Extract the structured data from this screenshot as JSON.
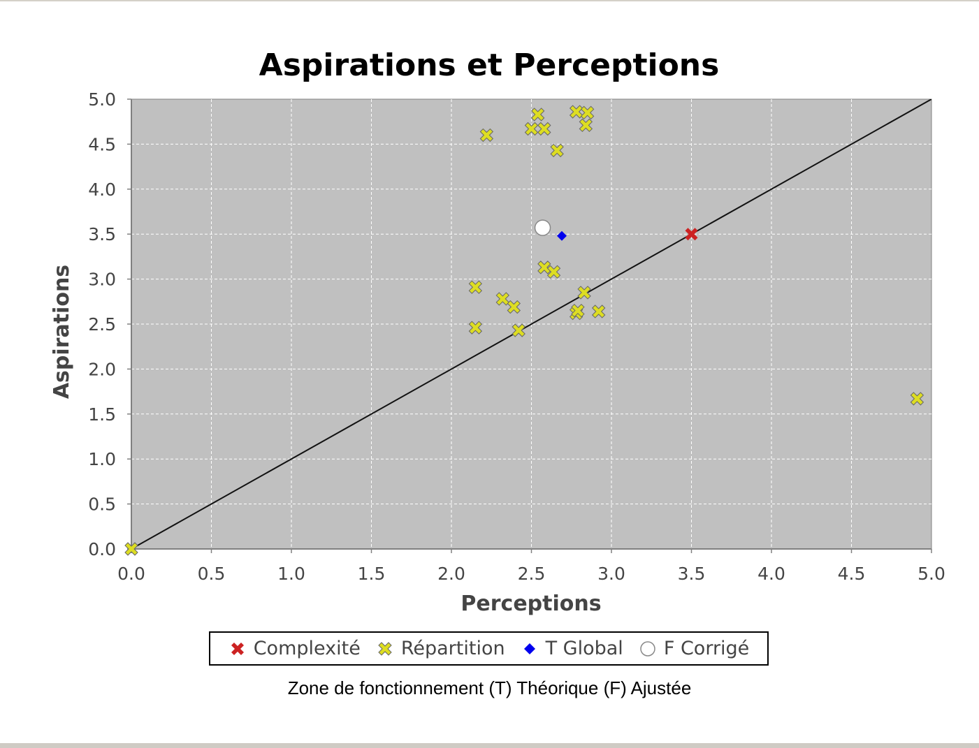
{
  "chart_data": {
    "type": "scatter",
    "title": "Aspirations et Perceptions",
    "xlabel": "Perceptions",
    "ylabel": "Aspirations",
    "xlim": [
      0,
      5
    ],
    "ylim": [
      0,
      5
    ],
    "x_ticks": [
      "0.0",
      "0.5",
      "1.0",
      "1.5",
      "2.0",
      "2.5",
      "3.0",
      "3.5",
      "4.0",
      "4.5",
      "5.0"
    ],
    "y_ticks": [
      "0.0",
      "0.5",
      "1.0",
      "1.5",
      "2.0",
      "2.5",
      "3.0",
      "3.5",
      "4.0",
      "4.5",
      "5.0"
    ],
    "grid": true,
    "legend_position": "bottom",
    "reference_line": {
      "from": [
        0,
        0
      ],
      "to": [
        5,
        5
      ]
    },
    "series": [
      {
        "name": "Complexité",
        "marker": "x",
        "color": "#cc2222",
        "points": [
          [
            3.5,
            3.5
          ]
        ]
      },
      {
        "name": "Répartition",
        "marker": "x",
        "color": "#dddd22",
        "points": [
          [
            2.54,
            4.83
          ],
          [
            2.78,
            4.86
          ],
          [
            2.85,
            4.85
          ],
          [
            2.84,
            4.71
          ],
          [
            2.5,
            4.67
          ],
          [
            2.58,
            4.67
          ],
          [
            2.22,
            4.6
          ],
          [
            2.66,
            4.43
          ],
          [
            2.58,
            3.13
          ],
          [
            2.64,
            3.08
          ],
          [
            2.15,
            2.91
          ],
          [
            2.32,
            2.78
          ],
          [
            2.39,
            2.69
          ],
          [
            2.83,
            2.85
          ],
          [
            2.78,
            2.62
          ],
          [
            2.79,
            2.65
          ],
          [
            2.92,
            2.64
          ],
          [
            2.15,
            2.46
          ],
          [
            2.42,
            2.43
          ],
          [
            4.91,
            1.67
          ],
          [
            0.0,
            0.0
          ]
        ]
      },
      {
        "name": "T Global",
        "marker": "diamond",
        "color": "#0000ee",
        "points": [
          [
            2.69,
            3.48
          ]
        ]
      },
      {
        "name": "F Corrigé",
        "marker": "circle",
        "color": "#ffffff",
        "points": [
          [
            2.57,
            3.57
          ]
        ]
      }
    ]
  },
  "caption": "Zone de fonctionnement (T) Théorique (F) Ajustée"
}
